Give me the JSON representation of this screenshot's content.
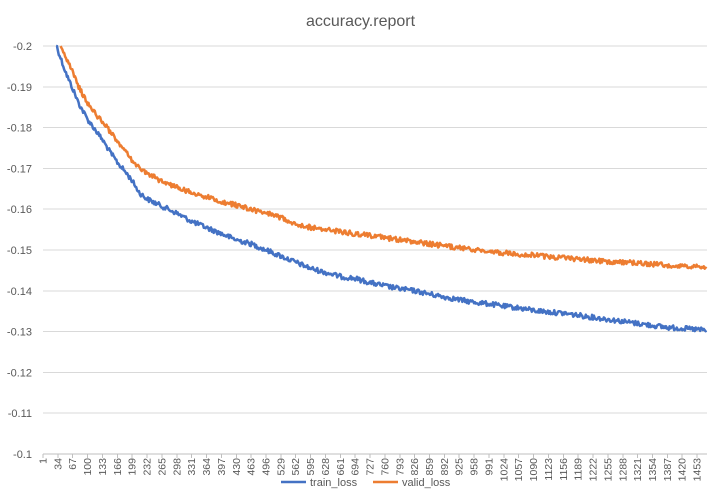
{
  "chart_data": {
    "type": "line",
    "title": "accuracy.report",
    "xlabel": "",
    "ylabel": "",
    "ylim": [
      -0.2,
      -0.1
    ],
    "y_ticks": [
      "-0.2",
      "-0.19",
      "-0.18",
      "-0.17",
      "-0.16",
      "-0.15",
      "-0.14",
      "-0.13",
      "-0.12",
      "-0.11",
      "-0.1"
    ],
    "x_range": [
      1,
      1475
    ],
    "x_tick_labels": [
      "1",
      "34",
      "67",
      "100",
      "133",
      "166",
      "199",
      "232",
      "265",
      "298",
      "331",
      "364",
      "397",
      "430",
      "463",
      "496",
      "529",
      "562",
      "595",
      "628",
      "661",
      "694",
      "727",
      "760",
      "793",
      "826",
      "859",
      "892",
      "925",
      "958",
      "991",
      "1024",
      "1057",
      "1090",
      "1123",
      "1156",
      "1189",
      "1222",
      "1255",
      "1288",
      "1321",
      "1354",
      "1387",
      "1420",
      "1453"
    ],
    "grid": true,
    "legend_position": "bottom",
    "series": [
      {
        "name": "train_loss",
        "color": "#4472C4",
        "x": [
          30,
          34,
          45,
          55,
          67,
          80,
          100,
          120,
          133,
          150,
          166,
          185,
          199,
          215,
          232,
          260,
          298,
          331,
          364,
          397,
          430,
          463,
          496,
          529,
          562,
          595,
          628,
          661,
          694,
          727,
          760,
          793,
          826,
          859,
          892,
          925,
          958,
          991,
          1024,
          1057,
          1090,
          1123,
          1156,
          1189,
          1222,
          1255,
          1288,
          1321,
          1354,
          1387,
          1420,
          1453,
          1475
        ],
        "y": [
          -0.2005,
          -0.199,
          -0.1955,
          -0.1925,
          -0.1895,
          -0.186,
          -0.182,
          -0.179,
          -0.177,
          -0.174,
          -0.1715,
          -0.169,
          -0.167,
          -0.164,
          -0.1625,
          -0.161,
          -0.159,
          -0.157,
          -0.1555,
          -0.154,
          -0.1525,
          -0.1515,
          -0.15,
          -0.1485,
          -0.147,
          -0.1455,
          -0.1445,
          -0.1435,
          -0.143,
          -0.142,
          -0.1412,
          -0.1405,
          -0.14,
          -0.1392,
          -0.1385,
          -0.1378,
          -0.1372,
          -0.1368,
          -0.1362,
          -0.1358,
          -0.1352,
          -0.1348,
          -0.1345,
          -0.134,
          -0.1335,
          -0.133,
          -0.1325,
          -0.132,
          -0.1315,
          -0.131,
          -0.1308,
          -0.1305,
          -0.1303
        ]
      },
      {
        "name": "valid_loss",
        "color": "#ED7D31",
        "x": [
          40,
          50,
          67,
          80,
          100,
          120,
          133,
          150,
          166,
          185,
          199,
          215,
          232,
          260,
          298,
          331,
          364,
          397,
          430,
          463,
          496,
          529,
          562,
          595,
          628,
          661,
          694,
          727,
          760,
          793,
          826,
          859,
          892,
          925,
          958,
          991,
          1024,
          1057,
          1090,
          1123,
          1156,
          1189,
          1222,
          1255,
          1288,
          1321,
          1354,
          1387,
          1420,
          1453,
          1475
        ],
        "y": [
          -0.2005,
          -0.1975,
          -0.1935,
          -0.19,
          -0.186,
          -0.183,
          -0.1815,
          -0.179,
          -0.1765,
          -0.174,
          -0.172,
          -0.17,
          -0.169,
          -0.167,
          -0.1655,
          -0.164,
          -0.163,
          -0.1618,
          -0.161,
          -0.16,
          -0.159,
          -0.158,
          -0.1565,
          -0.1555,
          -0.155,
          -0.1545,
          -0.154,
          -0.1535,
          -0.153,
          -0.1525,
          -0.152,
          -0.1515,
          -0.151,
          -0.1505,
          -0.15,
          -0.1497,
          -0.1493,
          -0.149,
          -0.1487,
          -0.1483,
          -0.148,
          -0.1478,
          -0.1475,
          -0.1472,
          -0.147,
          -0.1468,
          -0.1465,
          -0.1463,
          -0.146,
          -0.1458,
          -0.1455
        ]
      }
    ]
  }
}
